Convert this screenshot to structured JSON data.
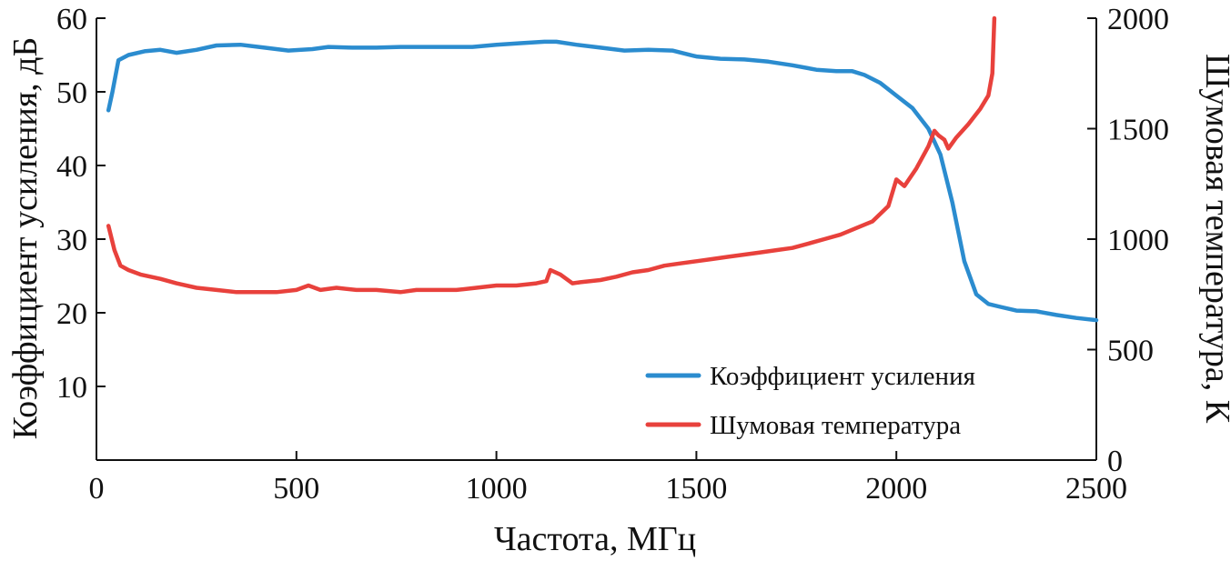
{
  "chart_data": {
    "type": "line",
    "xlabel": "Частота, МГц",
    "ylabel_left": "Коэффициент усиления, дБ",
    "ylabel_right": "Шумовая температура, К",
    "xlim": [
      0,
      2500
    ],
    "ylim_left": [
      0,
      60
    ],
    "ylim_right": [
      0,
      2000
    ],
    "x_ticks": [
      "0",
      "500",
      "1000",
      "1500",
      "2000",
      "2500"
    ],
    "y_left_ticks": [
      "10",
      "20",
      "30",
      "40",
      "50",
      "60"
    ],
    "y_right_ticks": [
      "0",
      "500",
      "1000",
      "1500",
      "2000"
    ],
    "grid": false,
    "legend_position": "bottom-right",
    "series": [
      {
        "name": "Коэффициент усиления",
        "axis": "left",
        "color": "#2b8ccf",
        "x": [
          30,
          40,
          55,
          80,
          120,
          160,
          200,
          250,
          300,
          360,
          420,
          480,
          540,
          580,
          640,
          700,
          760,
          820,
          880,
          940,
          1000,
          1060,
          1120,
          1150,
          1200,
          1260,
          1320,
          1380,
          1440,
          1500,
          1560,
          1620,
          1680,
          1740,
          1800,
          1850,
          1890,
          1920,
          1960,
          2000,
          2040,
          2080,
          2110,
          2140,
          2170,
          2200,
          2230,
          2260,
          2300,
          2350,
          2400,
          2450,
          2500
        ],
        "values": [
          47.5,
          50,
          54.3,
          55,
          55.5,
          55.7,
          55.3,
          55.7,
          56.3,
          56.4,
          56,
          55.6,
          55.8,
          56.1,
          56,
          56,
          56.1,
          56.1,
          56.1,
          56.1,
          56.4,
          56.6,
          56.8,
          56.8,
          56.4,
          56,
          55.6,
          55.7,
          55.6,
          54.8,
          54.5,
          54.4,
          54.1,
          53.6,
          53,
          52.8,
          52.8,
          52.3,
          51.2,
          49.5,
          47.8,
          45,
          41.5,
          35,
          27,
          22.5,
          21.2,
          20.8,
          20.3,
          20.2,
          19.7,
          19.3,
          19
        ]
      },
      {
        "name": "Шумовая температура",
        "axis": "right",
        "color": "#e8413c",
        "x": [
          30,
          45,
          60,
          80,
          110,
          160,
          200,
          250,
          300,
          350,
          400,
          450,
          500,
          530,
          560,
          600,
          650,
          700,
          760,
          800,
          850,
          900,
          950,
          1000,
          1050,
          1100,
          1125,
          1135,
          1160,
          1190,
          1210,
          1260,
          1300,
          1340,
          1380,
          1420,
          1460,
          1500,
          1540,
          1580,
          1620,
          1660,
          1700,
          1740,
          1780,
          1820,
          1860,
          1900,
          1940,
          1980,
          2000,
          2020,
          2050,
          2080,
          2095,
          2105,
          2120,
          2130,
          2150,
          2180,
          2210,
          2230,
          2240,
          2245
        ],
        "values": [
          1060,
          950,
          880,
          860,
          840,
          820,
          800,
          780,
          770,
          760,
          760,
          760,
          770,
          790,
          770,
          780,
          770,
          770,
          760,
          770,
          770,
          770,
          780,
          790,
          790,
          800,
          810,
          860,
          840,
          800,
          805,
          815,
          830,
          850,
          860,
          880,
          890,
          900,
          910,
          920,
          930,
          940,
          950,
          960,
          980,
          1000,
          1020,
          1050,
          1080,
          1150,
          1270,
          1240,
          1320,
          1420,
          1490,
          1470,
          1450,
          1410,
          1460,
          1520,
          1590,
          1650,
          1750,
          2000
        ]
      }
    ]
  }
}
